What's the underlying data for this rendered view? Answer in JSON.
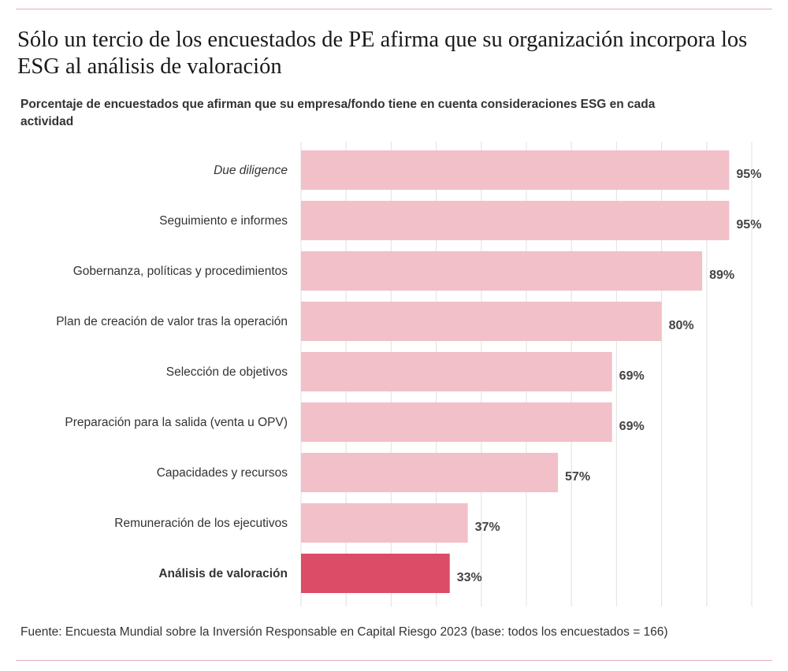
{
  "title": "Sólo un tercio de los encuestados de PE afirma que su organización incorpora los ESG al análisis de valoración",
  "subtitle": "Porcentaje de encuestados que afirman que su empresa/fondo tiene en cuenta consideraciones ESG en cada actividad",
  "source": "Fuente: Encuesta Mundial sobre la Inversión Responsable en Capital Riesgo 2023 (base: todos los encuestados = 166)",
  "colors": {
    "bar": "#f2c0c9",
    "highlight": "#dc4c67",
    "grid": "#e5e5e5",
    "rule": "#e9aab8"
  },
  "chart_data": {
    "type": "bar",
    "orientation": "horizontal",
    "categories": [
      "Due diligence",
      "Seguimiento e informes",
      "Gobernanza, políticas y procedimientos",
      "Plan de creación de valor tras la operación",
      "Selección de objetivos",
      "Preparación para la salida (venta u OPV)",
      "Capacidades y recursos",
      "Remuneración de los ejecutivos",
      "Análisis de valoración"
    ],
    "values": [
      95,
      95,
      89,
      80,
      69,
      69,
      57,
      37,
      33
    ],
    "data_labels": [
      "95%",
      "95%",
      "89%",
      "80%",
      "69%",
      "69%",
      "57%",
      "37%",
      "33%"
    ],
    "highlight": "Análisis de valoración",
    "italic_categories": [
      "Due diligence"
    ],
    "xlim": [
      0,
      100
    ],
    "grid": true,
    "grid_step": 10
  }
}
